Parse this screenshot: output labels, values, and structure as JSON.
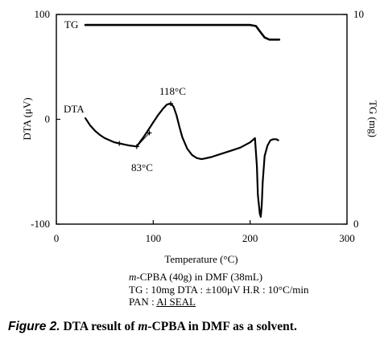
{
  "chart_data": {
    "type": "line",
    "xlabel": "Temperature (°C)",
    "ylabel_left": "DTA (μV)",
    "ylabel_right": "TG (mg)",
    "xlim": [
      0,
      300
    ],
    "ylim_left": [
      -100,
      100
    ],
    "ylim_right": [
      0,
      10
    ],
    "x_ticks": [
      0,
      100,
      200,
      300
    ],
    "y_ticks_left": [
      -100,
      0,
      100
    ],
    "y_ticks_right": [
      0,
      10
    ],
    "grid": false,
    "series": [
      {
        "name": "TG",
        "axis": "right",
        "x": [
          30,
          100,
          150,
          200,
          206,
          210,
          215,
          220,
          230
        ],
        "y": [
          9.5,
          9.5,
          9.5,
          9.5,
          9.45,
          9.2,
          8.9,
          8.8,
          8.8
        ]
      },
      {
        "name": "DTA",
        "axis": "left",
        "x": [
          30,
          35,
          40,
          45,
          50,
          55,
          60,
          65,
          70,
          75,
          80,
          83,
          86,
          90,
          95,
          100,
          105,
          110,
          114,
          118,
          121,
          124,
          127,
          130,
          135,
          140,
          145,
          150,
          160,
          170,
          180,
          190,
          200,
          205,
          207,
          208,
          210,
          211,
          212,
          213,
          215,
          218,
          221,
          224,
          227,
          229
        ],
        "y": [
          1,
          -6,
          -11,
          -15,
          -18,
          -20,
          -22,
          -23,
          -24,
          -25,
          -25.5,
          -26,
          -22,
          -17,
          -10,
          -3,
          4,
          10,
          14,
          15,
          12,
          4,
          -7,
          -17,
          -28,
          -34,
          -37,
          -38,
          -36,
          -33,
          -30,
          -27,
          -22,
          -18,
          -45,
          -72,
          -90,
          -93,
          -82,
          -60,
          -35,
          -25,
          -20,
          -19,
          -19,
          -20
        ]
      }
    ],
    "annotations": [
      {
        "label": "118°C",
        "x": 118,
        "y": 15
      },
      {
        "label": "83°C",
        "x": 83,
        "y": -26
      }
    ]
  },
  "notes": {
    "line1_italic": "m",
    "line1_rest": "-CPBA (40g) in DMF (38mL)",
    "line2": "TG : 10mg  DTA : ±100μV  H.R : 10°C/min",
    "line3_prefix": "PAN : ",
    "line3_underlined": "Al SEAL"
  },
  "caption": {
    "figure_label": "Figure 2.",
    "text_before": "DTA result of ",
    "italic_m": "m",
    "text_after": "-CPBA in DMF as a solvent."
  }
}
